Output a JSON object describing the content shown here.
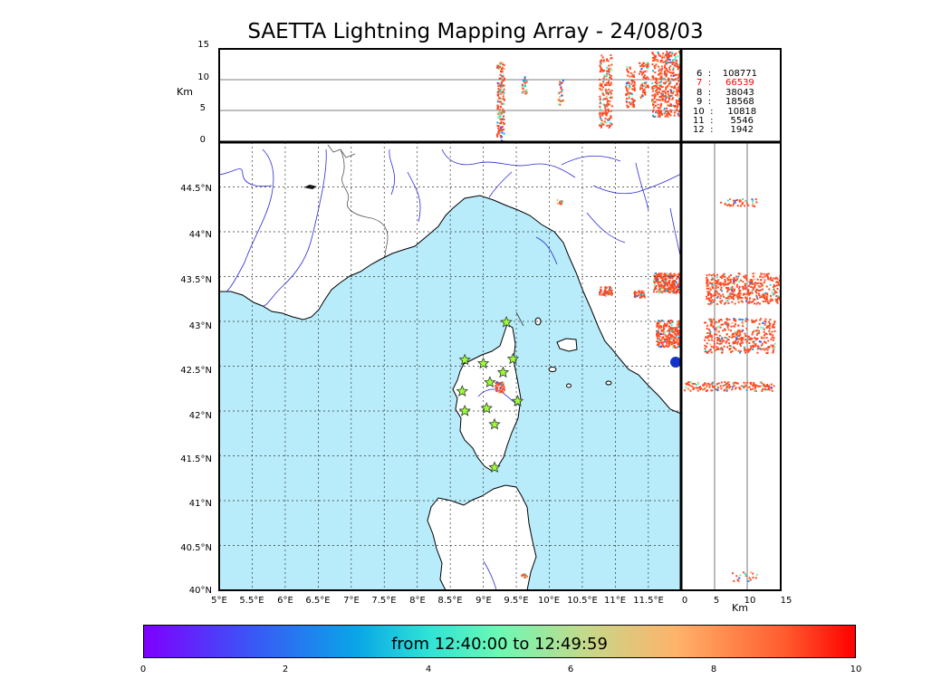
{
  "title": "SAETTA Lightning Mapping Array - 24/08/03",
  "altitude_panel": {
    "ylabel": "Km",
    "yticks": [
      "15",
      "10",
      "5",
      "0"
    ]
  },
  "side_panel": {
    "xlabel": "Km",
    "xticks": [
      "0",
      "5",
      "10",
      "15"
    ]
  },
  "map": {
    "lon_ticks": [
      "5°E",
      "5.5°E",
      "6°E",
      "6.5°E",
      "7°E",
      "7.5°E",
      "8°E",
      "8.5°E",
      "9°E",
      "9.5°E",
      "10°E",
      "10.5°E",
      "11°E",
      "11.5°E"
    ],
    "lat_ticks": [
      "44.5°N",
      "44°N",
      "43.5°N",
      "43°N",
      "42.5°N",
      "42°N",
      "41.5°N",
      "41°N",
      "40.5°N",
      "40°N"
    ],
    "stations": [
      {
        "lon": 9.35,
        "lat": 42.99
      },
      {
        "lon": 8.72,
        "lat": 42.57
      },
      {
        "lon": 9.0,
        "lat": 42.53
      },
      {
        "lon": 9.45,
        "lat": 42.58
      },
      {
        "lon": 9.3,
        "lat": 42.43
      },
      {
        "lon": 9.1,
        "lat": 42.32
      },
      {
        "lon": 8.68,
        "lat": 42.22
      },
      {
        "lon": 9.52,
        "lat": 42.11
      },
      {
        "lon": 8.72,
        "lat": 42.0
      },
      {
        "lon": 9.05,
        "lat": 42.03
      },
      {
        "lon": 9.17,
        "lat": 41.85
      },
      {
        "lon": 9.17,
        "lat": 41.37
      }
    ]
  },
  "legend": {
    "entries": [
      {
        "label": "6  :    108771",
        "color": "#000000"
      },
      {
        "label": "7  :     66539",
        "color": "#ff0000"
      },
      {
        "label": "8  :     38043",
        "color": "#000000"
      },
      {
        "label": "9  :     18568",
        "color": "#000000"
      },
      {
        "label": "10  :     10818",
        "color": "#000000"
      },
      {
        "label": "11  :      5546",
        "color": "#000000"
      },
      {
        "label": "12  :      1942",
        "color": "#000000"
      }
    ]
  },
  "colorbar": {
    "label": "from 12:40:00 to 12:49:59",
    "ticks": [
      "0",
      "2",
      "4",
      "6",
      "8",
      "10"
    ],
    "range": [
      0,
      10
    ]
  },
  "colors": {
    "sea": "#b8ecfa",
    "river": "#2b2bd6",
    "border": "#555555",
    "hot": "#ff4a22"
  }
}
